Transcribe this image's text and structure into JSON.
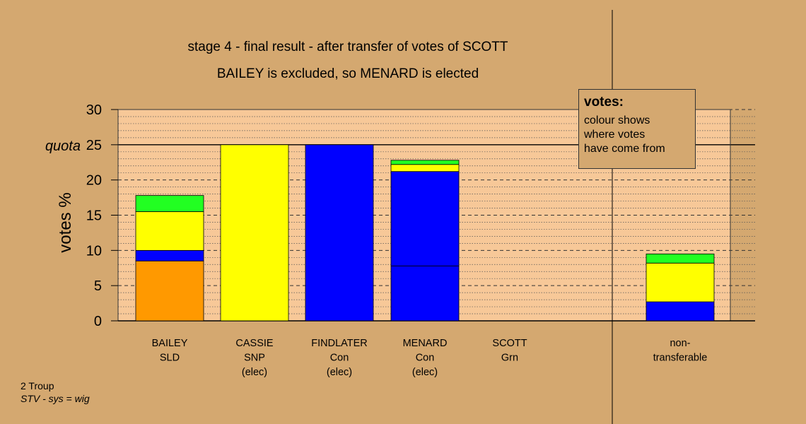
{
  "chart_data": {
    "type": "bar",
    "title": "stage 4 - final result - after transfer of votes of SCOTT",
    "subtitle": "BAILEY is excluded, so MENARD is elected",
    "ylabel": "votes %",
    "ylim": [
      0,
      30
    ],
    "yticks": [
      0,
      5,
      10,
      15,
      20,
      25,
      30
    ],
    "quota": {
      "label": "quota",
      "value": 25
    },
    "grid": true,
    "categories": [
      {
        "name": "BAILEY",
        "party": "SLD",
        "note": ""
      },
      {
        "name": "CASSIE",
        "party": "SNP",
        "note": "(elec)"
      },
      {
        "name": "FINDLATER",
        "party": "Con",
        "note": "(elec)"
      },
      {
        "name": "MENARD",
        "party": "Con",
        "note": "(elec)"
      },
      {
        "name": "SCOTT",
        "party": "Grn",
        "note": ""
      },
      {
        "name": "non-",
        "party": "transferable",
        "note": ""
      }
    ],
    "bars": [
      {
        "segments": [
          {
            "value": 8.5,
            "color": "#FF9900"
          },
          {
            "value": 1.5,
            "color": "#0000FF"
          },
          {
            "value": 5.5,
            "color": "#FFFF00"
          },
          {
            "value": 2.3,
            "color": "#22FF22"
          }
        ]
      },
      {
        "segments": [
          {
            "value": 25,
            "color": "#FFFF00"
          }
        ]
      },
      {
        "segments": [
          {
            "value": 25,
            "color": "#0000FF"
          }
        ]
      },
      {
        "segments": [
          {
            "value": 7.8,
            "color": "#0000FF"
          },
          {
            "value": 13.4,
            "color": "#0000FF"
          },
          {
            "value": 1.0,
            "color": "#FFFF00"
          },
          {
            "value": 0.6,
            "color": "#22FF22"
          }
        ]
      },
      {
        "segments": []
      },
      {
        "segments": [
          {
            "value": 2.7,
            "color": "#0000FF"
          },
          {
            "value": 5.5,
            "color": "#FFFF00"
          },
          {
            "value": 1.3,
            "color": "#22FF22"
          }
        ]
      }
    ],
    "colors": {
      "background": "#D4A870",
      "plot_area": "#F7C898"
    }
  },
  "legend": {
    "title": "votes:",
    "lines": [
      "colour shows",
      "where votes",
      "have come from"
    ]
  },
  "footer": {
    "line1": "2 Troup",
    "line2": "STV - sys = wig"
  }
}
